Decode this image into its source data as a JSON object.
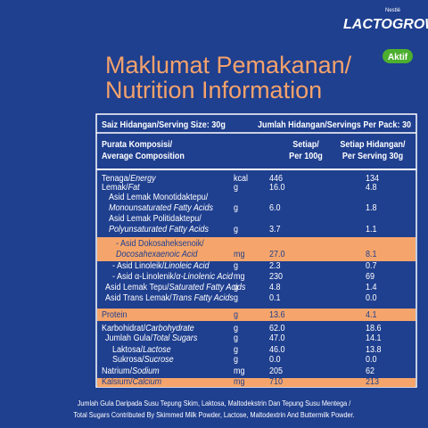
{
  "brand": {
    "maker": "Nestlé",
    "name": "LACTOGROW",
    "badge": "Aktif"
  },
  "title": [
    "Maklumat Pemakanan/",
    "Nutrition Information"
  ],
  "serving": {
    "size": "Saiz Hidangan/Serving Size: 30g",
    "per_pack": "Jumlah Hidangan/Servings Per Pack: 30"
  },
  "columns": {
    "composition": [
      "Purata Komposisi/",
      "Average Composition"
    ],
    "per_100g": [
      "Setiap/",
      "Per 100g"
    ],
    "per_serving": [
      "Setiap Hidangan/",
      "Per Serving 30g"
    ]
  },
  "rows": [
    {
      "local": "Tenaga/",
      "english": "Energy",
      "unit": "kcal",
      "per_100g": "446",
      "per_serving": "134"
    },
    {
      "local": "Lemak/",
      "english": "Fat",
      "unit": "g",
      "per_100g": "16.0",
      "per_serving": "4.8"
    },
    {
      "local": "Asid Lemak Monotidaktepu/",
      "english": "Monounsaturated Fatty Acids",
      "unit": "g",
      "per_100g": "6.0",
      "per_serving": "1.8"
    },
    {
      "local": "Asid Lemak Politidaktepu/",
      "english": "Polyunsaturated Fatty Acids",
      "unit": "g",
      "per_100g": "3.7",
      "per_serving": "1.1"
    },
    {
      "local": "- Asid Dokosaheksenoik/",
      "english": "Docosahexaenoic Acid",
      "unit": "mg",
      "per_100g": "27.0",
      "per_serving": "8.1"
    },
    {
      "local": "- Asid Linoleik/",
      "english": "Linoleic Acid",
      "unit": "g",
      "per_100g": "2.3",
      "per_serving": "0.7"
    },
    {
      "local": "- Asid α-Linolenik/",
      "english": "α-Linolenic Acid",
      "unit": "mg",
      "per_100g": "230",
      "per_serving": "69"
    },
    {
      "local": "Asid Lemak Tepu/",
      "english": "Saturated Fatty Acids",
      "unit": "g",
      "per_100g": "4.8",
      "per_serving": "1.4"
    },
    {
      "local": "Asid Trans Lemak/",
      "english": "Trans Fatty Acids",
      "unit": "g",
      "per_100g": "0.1",
      "per_serving": "0.0"
    },
    {
      "local": "Protein",
      "unit": "g",
      "per_100g": "13.6",
      "per_serving": "4.1"
    },
    {
      "local": "Karbohidrat/",
      "english": "Carbohydrate",
      "unit": "g",
      "per_100g": "62.0",
      "per_serving": "18.6"
    },
    {
      "local": "Jumlah Gula/",
      "english": "Total Sugars",
      "unit": "g",
      "per_100g": "47.0",
      "per_serving": "14.1"
    },
    {
      "local": "Laktosa/",
      "english": "Lactose",
      "unit": "g",
      "per_100g": "46.0",
      "per_serving": "13.8"
    },
    {
      "local": "Sukrosa/",
      "english": "Sucrose",
      "unit": "g",
      "per_100g": "0.0",
      "per_serving": "0.0"
    },
    {
      "local": "Natrium/",
      "english": "Sodium",
      "unit": "mg",
      "per_100g": "205",
      "per_serving": "62"
    },
    {
      "local": "Kalsium/",
      "english": "Calcium",
      "unit": "mg",
      "per_100g": "710",
      "per_serving": "213"
    }
  ],
  "footnote": [
    "Jumlah Gula Daripada Susu Tepung Skim, Laktosa, Maltodekstrin Dan Tepung Susu Mentega /",
    "Total Sugars Contributed By Skimmed Milk Powder, Lactose, Maltodextrin And Buttermilk Powder."
  ]
}
